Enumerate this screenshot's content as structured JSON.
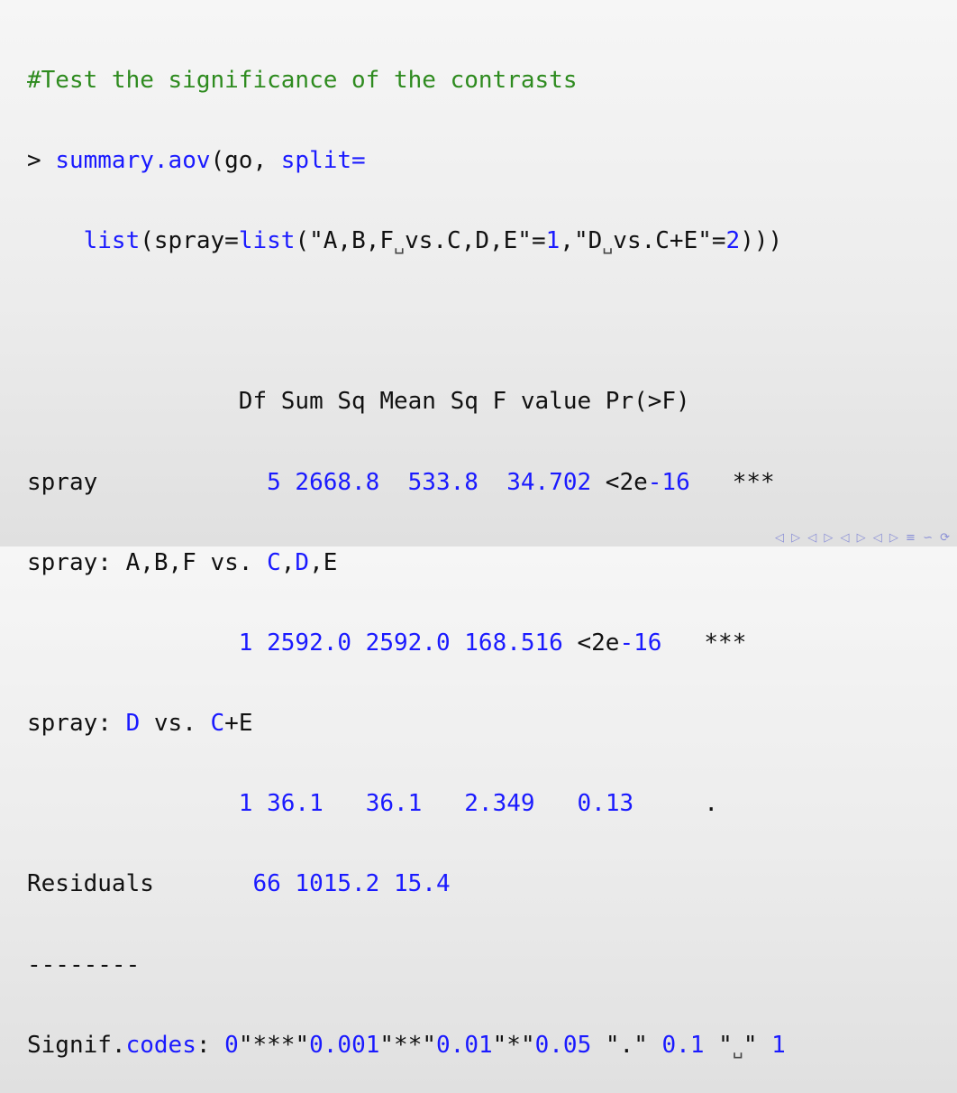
{
  "lines": {
    "comment": "#Test the significance of the contrasts",
    "l2_prompt": "> ",
    "l2_fn": "summary.aov",
    "l2_rest": "(go, ",
    "l2_arg": "split=",
    "l3_indent": "    ",
    "l3_list1": "list",
    "l3_spray": "(spray=",
    "l3_list2": "list",
    "l3_str1a": "(\"A,B,F",
    "l3_str1b": "vs.C,D,E\"=",
    "l3_n1": "1",
    "l3_comma": ",",
    "l3_str2a": "\"D",
    "l3_str2b": "vs.C+E\"=",
    "l3_n2": "2",
    "l3_close": ")))"
  },
  "visible_space_glyph": "␣",
  "table": {
    "header": "               Df Sum Sq Mean Sq F value Pr(>F)",
    "rows": [
      {
        "label": "spray           ",
        "df": " 5",
        "sum_sq": " 2668.8",
        "mean_sq": "  533.8",
        "f_value": "  34.702",
        "p_prefix": " <2e",
        "p_exp": "-16",
        "stars": "   ***"
      },
      {
        "label_a": "spray: A,B,F vs. ",
        "label_b": "C",
        "label_c": ",",
        "label_d": "D",
        "label_e": ",E",
        "df": "               1",
        "sum_sq": " 2592.0",
        "mean_sq": " 2592.0",
        "f_value": " 168.516",
        "p_prefix": " <2e",
        "p_exp": "-16",
        "stars": "   ***"
      },
      {
        "label_a": "spray: ",
        "label_b": "D",
        "label_c": " vs. ",
        "label_d": "C",
        "label_e": "+E",
        "df": "               1",
        "sum_sq": " 36.1",
        "mean_sq": "   36.1",
        "f_value": "   2.349",
        "p_value": "   0.13",
        "stars": "     ."
      },
      {
        "label": "Residuals       ",
        "df": "66",
        "sum_sq": " 1015.2",
        "mean_sq": " 15.4"
      }
    ],
    "separator": "--------",
    "signif_label": "Signif.",
    "signif_codes_word": "codes",
    "signif_colon": ": ",
    "s_0": "0",
    "s_q1": "\"***\"",
    "s_001": "0.001",
    "s_q2": "\"**\"",
    "s_01": "0.01",
    "s_q3": "\"*\"",
    "s_05": "0.05",
    "s_q4": " \".\" ",
    "s_1": "0.1",
    "s_q5a": " \"",
    "s_q5b": "\" ",
    "s_end": "1"
  },
  "nav_icons": "◁ ▷ ◁ ▷ ◁ ▷ ◁ ▷ ≡ ∽ ⟳"
}
